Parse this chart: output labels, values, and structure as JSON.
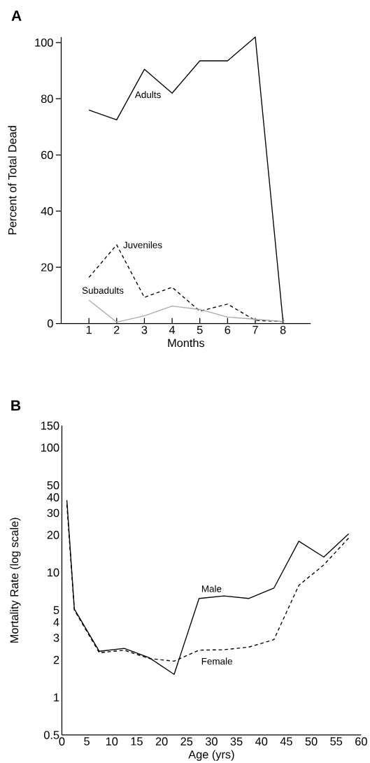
{
  "chart_data": [
    {
      "type": "line",
      "title": "A",
      "xlabel": "Months",
      "ylabel": "Percent of Total Dead",
      "x": [
        1,
        2,
        3,
        4,
        5,
        6,
        7,
        8
      ],
      "xlim": [
        0,
        9
      ],
      "xticks": [
        1,
        2,
        3,
        4,
        5,
        6,
        7,
        8
      ],
      "ylim": [
        0,
        102
      ],
      "yticks": [
        0,
        20,
        40,
        60,
        80,
        100
      ],
      "series": [
        {
          "name": "Adults",
          "color": "#000000",
          "line_style": "solid",
          "values": [
            76,
            72.5,
            90.5,
            82,
            93.5,
            93.5,
            102,
            0.8
          ]
        },
        {
          "name": "Juveniles",
          "color": "#000000",
          "line_style": "dashed",
          "values": [
            16.4,
            28,
            9.3,
            12.9,
            4.4,
            6.9,
            1.1,
            0.7
          ]
        },
        {
          "name": "Subadults",
          "color": "#aaaaaa",
          "line_style": "solid",
          "values": [
            8.3,
            0.5,
            2.7,
            6.2,
            5,
            2.3,
            1.5,
            0.7
          ]
        }
      ]
    },
    {
      "type": "line",
      "title": "B",
      "xlabel": "Age (yrs)",
      "ylabel": "Mortality Rate (log scale)",
      "log": "y",
      "x": [
        1,
        2.5,
        7.5,
        12.5,
        17.5,
        22.5,
        27.5,
        32.5,
        37.5,
        42.5,
        47.5,
        52.5,
        57.5
      ],
      "xlim": [
        0,
        60
      ],
      "xticks": [
        0,
        5,
        10,
        15,
        20,
        25,
        30,
        35,
        40,
        45,
        50,
        55,
        60
      ],
      "ylim": [
        0.5,
        150
      ],
      "yticks": [
        0.5,
        1,
        2,
        3,
        4,
        5,
        10,
        20,
        30,
        40,
        50,
        100,
        150
      ],
      "series": [
        {
          "name": "Male",
          "color": "#000000",
          "line_style": "solid",
          "values": [
            38,
            5.1,
            2.34,
            2.47,
            2.08,
            1.53,
            6.2,
            6.5,
            6.2,
            7.5,
            17.8,
            13.3,
            20.4
          ]
        },
        {
          "name": "Female",
          "color": "#000000",
          "line_style": "dashed",
          "values": [
            35,
            5,
            2.28,
            2.39,
            2.05,
            1.95,
            2.39,
            2.41,
            2.53,
            2.9,
            7.9,
            11.5,
            18.9
          ]
        }
      ]
    }
  ]
}
